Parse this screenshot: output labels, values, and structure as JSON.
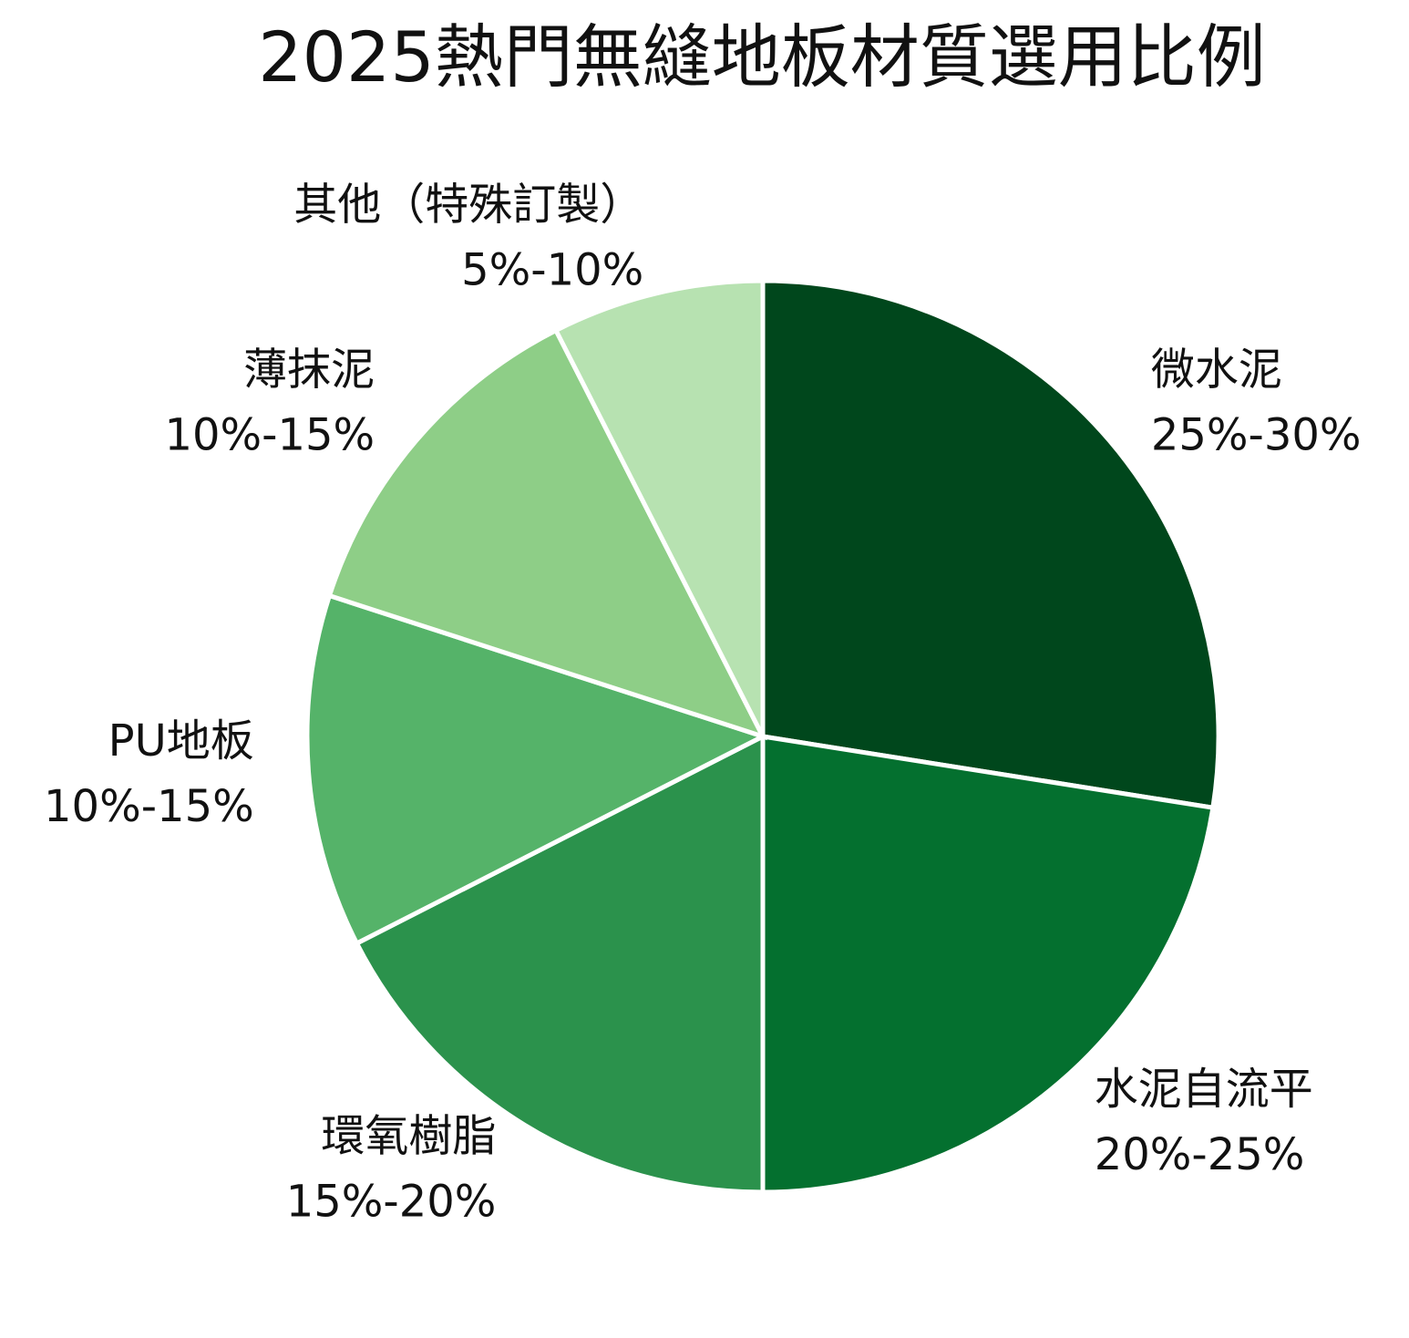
{
  "chart_data": {
    "type": "pie",
    "title": "2025熱門無縫地板材質選用比例",
    "categories": [
      "微水泥",
      "水泥自流平",
      "環氧樹脂",
      "PU地板",
      "薄抹泥",
      "其他（特殊訂製）"
    ],
    "values": [
      27.5,
      22.5,
      17.5,
      12.5,
      12.5,
      7.5
    ],
    "value_labels": [
      "25%-30%",
      "20%-25%",
      "15%-20%",
      "10%-15%",
      "10%-15%",
      "5%-10%"
    ],
    "colors": [
      "#00471c",
      "#04702f",
      "#2b924c",
      "#55b369",
      "#8ece87",
      "#b7e2b1"
    ]
  }
}
